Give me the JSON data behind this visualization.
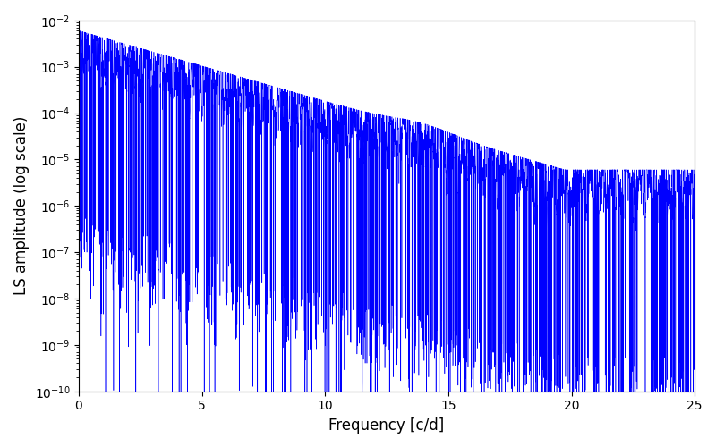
{
  "title": "",
  "xlabel": "Frequency [c/d]",
  "ylabel": "LS amplitude (log scale)",
  "xlim": [
    0,
    25
  ],
  "ylim": [
    1e-10,
    0.01
  ],
  "line_color": "#0000ff",
  "line_width": 0.4,
  "background_color": "#ffffff",
  "figsize": [
    8.0,
    5.0
  ],
  "dpi": 100,
  "freq_max": 25.0,
  "n_points": 50000,
  "seed": 12345
}
